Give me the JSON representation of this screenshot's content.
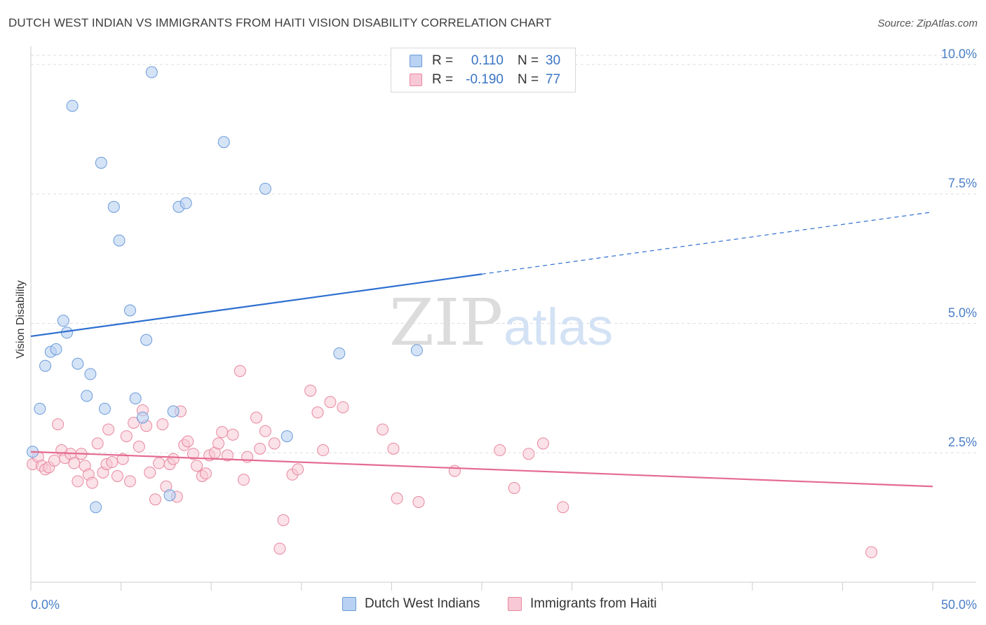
{
  "title": "DUTCH WEST INDIAN VS IMMIGRANTS FROM HAITI VISION DISABILITY CORRELATION CHART",
  "source": "Source: ZipAtlas.com",
  "watermark": {
    "zip": "ZIP",
    "atlas": "atlas"
  },
  "colors": {
    "blue_fill": "#b9d1f2",
    "blue_stroke": "#6a9bd8",
    "blue_line": "#2d6fd0",
    "pink_fill": "#f8c8d6",
    "pink_stroke": "#e8889f",
    "pink_line": "#e56b91",
    "grid": "#dddddd",
    "tick_text": "#4a7fc7"
  },
  "legend_top": [
    {
      "r_label": "R =",
      "r_value": "0.110",
      "n_label": "N =",
      "n_value": "30"
    },
    {
      "r_label": "R =",
      "r_value": "-0.190",
      "n_label": "N =",
      "n_value": "77"
    }
  ],
  "legend_bottom": [
    "Dutch West Indians",
    "Immigrants from Haiti"
  ],
  "chart_data": {
    "type": "scatter",
    "title": "DUTCH WEST INDIAN VS IMMIGRANTS FROM HAITI VISION DISABILITY CORRELATION CHART",
    "xlabel": "",
    "ylabel": "Vision Disability",
    "xlim": [
      0,
      50
    ],
    "ylim": [
      0,
      10.5
    ],
    "x_tick_labels": [
      "0.0%",
      "50.0%"
    ],
    "y_ticks": [
      2.5,
      5.0,
      7.5,
      10.0
    ],
    "y_tick_labels": [
      "2.5%",
      "5.0%",
      "7.5%",
      "10.0%"
    ],
    "grid": true,
    "series": [
      {
        "name": "Dutch West Indians",
        "r": 0.11,
        "n": 30,
        "trend": {
          "x0": 0,
          "y0": 4.75,
          "x1": 25,
          "y1": 5.95,
          "dashed_to_x": 50,
          "dashed_to_y": 7.15
        },
        "points": [
          [
            6.7,
            9.85
          ],
          [
            2.3,
            9.2
          ],
          [
            10.7,
            8.5
          ],
          [
            3.9,
            8.1
          ],
          [
            13.0,
            7.6
          ],
          [
            4.6,
            7.25
          ],
          [
            8.2,
            7.25
          ],
          [
            8.6,
            7.32
          ],
          [
            4.9,
            6.6
          ],
          [
            5.5,
            5.25
          ],
          [
            1.8,
            5.05
          ],
          [
            2.0,
            4.82
          ],
          [
            6.4,
            4.68
          ],
          [
            1.1,
            4.45
          ],
          [
            1.4,
            4.5
          ],
          [
            17.1,
            4.42
          ],
          [
            21.4,
            4.48
          ],
          [
            0.8,
            4.18
          ],
          [
            2.6,
            4.22
          ],
          [
            3.3,
            4.02
          ],
          [
            3.1,
            3.6
          ],
          [
            5.8,
            3.55
          ],
          [
            0.5,
            3.35
          ],
          [
            4.1,
            3.35
          ],
          [
            7.9,
            3.3
          ],
          [
            6.2,
            3.18
          ],
          [
            14.2,
            2.82
          ],
          [
            0.1,
            2.52
          ],
          [
            7.7,
            1.68
          ],
          [
            3.6,
            1.45
          ]
        ]
      },
      {
        "name": "Immigrants from Haiti",
        "r": -0.19,
        "n": 77,
        "trend": {
          "x0": 0,
          "y0": 2.52,
          "x1": 50,
          "y1": 1.85
        },
        "points": [
          [
            0.1,
            2.28
          ],
          [
            0.4,
            2.42
          ],
          [
            0.6,
            2.25
          ],
          [
            0.8,
            2.18
          ],
          [
            1.0,
            2.22
          ],
          [
            1.3,
            2.35
          ],
          [
            1.5,
            3.05
          ],
          [
            1.7,
            2.55
          ],
          [
            1.9,
            2.4
          ],
          [
            2.2,
            2.48
          ],
          [
            2.4,
            2.3
          ],
          [
            2.6,
            1.95
          ],
          [
            2.8,
            2.48
          ],
          [
            3.0,
            2.25
          ],
          [
            3.2,
            2.08
          ],
          [
            3.4,
            1.92
          ],
          [
            3.7,
            2.68
          ],
          [
            4.0,
            2.12
          ],
          [
            4.2,
            2.28
          ],
          [
            4.3,
            2.95
          ],
          [
            4.5,
            2.32
          ],
          [
            4.8,
            2.05
          ],
          [
            5.1,
            2.38
          ],
          [
            5.3,
            2.82
          ],
          [
            5.5,
            1.95
          ],
          [
            5.7,
            3.08
          ],
          [
            6.0,
            2.62
          ],
          [
            6.2,
            3.32
          ],
          [
            6.4,
            3.02
          ],
          [
            6.6,
            2.12
          ],
          [
            6.9,
            1.6
          ],
          [
            7.1,
            2.3
          ],
          [
            7.3,
            3.05
          ],
          [
            7.5,
            1.85
          ],
          [
            7.7,
            2.28
          ],
          [
            7.9,
            2.38
          ],
          [
            8.1,
            1.65
          ],
          [
            8.3,
            3.3
          ],
          [
            8.5,
            2.65
          ],
          [
            8.7,
            2.72
          ],
          [
            9.0,
            2.48
          ],
          [
            9.2,
            2.25
          ],
          [
            9.5,
            2.05
          ],
          [
            9.7,
            2.1
          ],
          [
            9.9,
            2.45
          ],
          [
            10.2,
            2.5
          ],
          [
            10.4,
            2.68
          ],
          [
            10.6,
            2.9
          ],
          [
            10.9,
            2.45
          ],
          [
            11.2,
            2.85
          ],
          [
            11.6,
            4.08
          ],
          [
            11.8,
            1.98
          ],
          [
            12.0,
            2.42
          ],
          [
            12.5,
            3.18
          ],
          [
            12.7,
            2.58
          ],
          [
            13.0,
            2.92
          ],
          [
            13.5,
            2.68
          ],
          [
            13.8,
            0.65
          ],
          [
            14.0,
            1.2
          ],
          [
            14.5,
            2.08
          ],
          [
            14.8,
            2.18
          ],
          [
            15.5,
            3.7
          ],
          [
            15.9,
            3.28
          ],
          [
            16.2,
            2.55
          ],
          [
            16.6,
            3.48
          ],
          [
            17.3,
            3.38
          ],
          [
            19.5,
            2.95
          ],
          [
            20.1,
            2.58
          ],
          [
            20.3,
            1.62
          ],
          [
            21.5,
            1.55
          ],
          [
            23.5,
            2.15
          ],
          [
            26.0,
            2.55
          ],
          [
            26.8,
            1.82
          ],
          [
            27.6,
            2.48
          ],
          [
            28.4,
            2.68
          ],
          [
            29.5,
            1.45
          ],
          [
            46.6,
            0.58
          ]
        ]
      }
    ]
  }
}
